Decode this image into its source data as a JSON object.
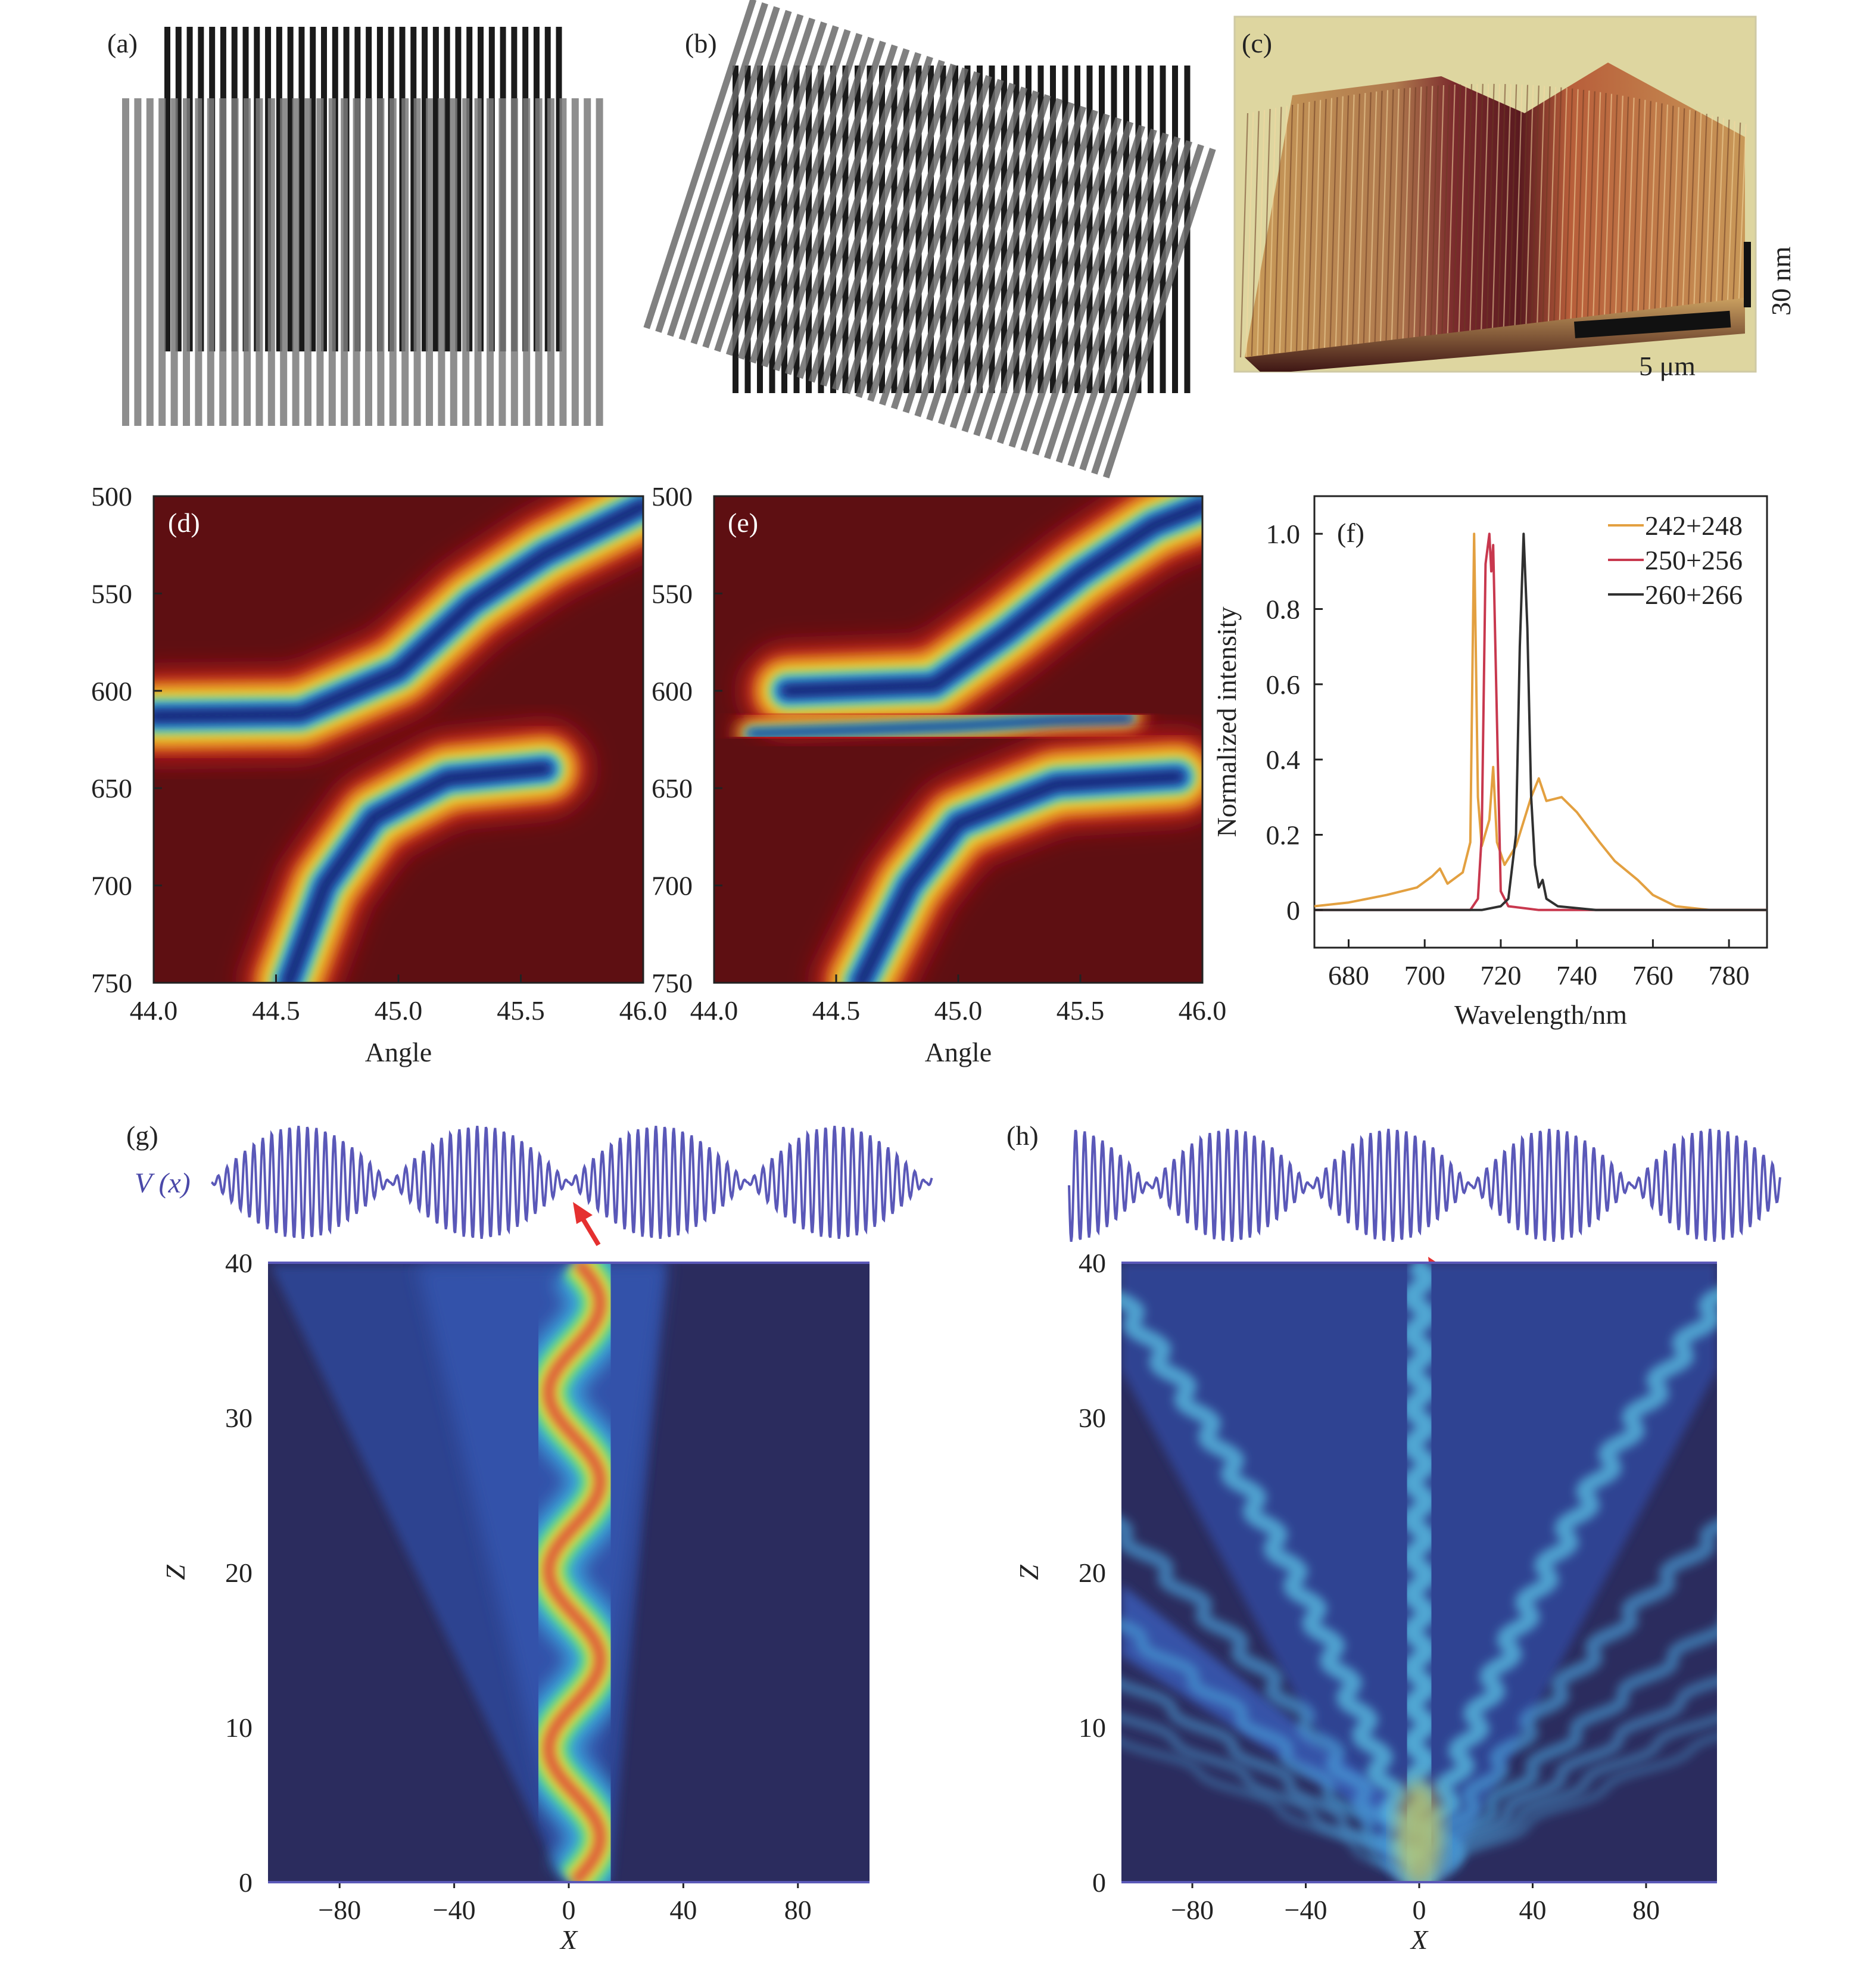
{
  "panels": {
    "a": {
      "label": "(a)"
    },
    "b": {
      "label": "(b)"
    },
    "c": {
      "label": "(c)",
      "scale_z": "30 nm",
      "scale_xy": "5 μm"
    },
    "d": {
      "label": "(d)"
    },
    "e": {
      "label": "(e)"
    },
    "f": {
      "label": "(f)"
    },
    "g": {
      "label": "(g)",
      "potential_label": "V (x)"
    },
    "h": {
      "label": "(h)"
    }
  },
  "colors": {
    "map_background": "#5e0f12",
    "field_background": "#2b2c5e",
    "potential_wave": "#5a58b8",
    "arrow": "#e53030"
  },
  "chart_data": [
    {
      "id": "d",
      "type": "heatmap",
      "xlabel": "Angle",
      "ylabel": "",
      "x_ticks": [
        "44.0",
        "44.5",
        "45.0",
        "45.5",
        "46.0"
      ],
      "y_ticks": [
        "500",
        "550",
        "600",
        "650",
        "700",
        "750"
      ],
      "xlim": [
        44.0,
        46.0
      ],
      "ylim": [
        500,
        750
      ],
      "branches": [
        {
          "name": "upper",
          "points": [
            [
              44.0,
              613
            ],
            [
              44.6,
              612
            ],
            [
              45.0,
              590
            ],
            [
              45.3,
              555
            ],
            [
              45.6,
              530
            ],
            [
              46.0,
              505
            ]
          ]
        },
        {
          "name": "lower",
          "points": [
            [
              44.55,
              750
            ],
            [
              44.7,
              700
            ],
            [
              44.9,
              665
            ],
            [
              45.2,
              645
            ],
            [
              45.6,
              640
            ]
          ]
        }
      ]
    },
    {
      "id": "e",
      "type": "heatmap",
      "xlabel": "Angle",
      "ylabel": "",
      "x_ticks": [
        "44.0",
        "44.5",
        "45.0",
        "45.5",
        "46.0"
      ],
      "y_ticks": [
        "500",
        "550",
        "600",
        "650",
        "700",
        "750"
      ],
      "xlim": [
        44.0,
        46.0
      ],
      "ylim": [
        500,
        750
      ],
      "branches": [
        {
          "name": "upper",
          "points": [
            [
              44.3,
              600
            ],
            [
              44.9,
              597
            ],
            [
              45.2,
              570
            ],
            [
              45.5,
              540
            ],
            [
              45.8,
              515
            ],
            [
              46.0,
              505
            ]
          ]
        },
        {
          "name": "middle",
          "points": [
            [
              44.15,
              622
            ],
            [
              44.6,
              620
            ],
            [
              45.0,
              618
            ],
            [
              45.4,
              615
            ],
            [
              45.7,
              614
            ]
          ]
        },
        {
          "name": "lower",
          "points": [
            [
              44.6,
              750
            ],
            [
              44.8,
              700
            ],
            [
              45.0,
              668
            ],
            [
              45.4,
              648
            ],
            [
              45.9,
              644
            ]
          ]
        }
      ]
    },
    {
      "id": "f",
      "type": "line",
      "xlabel": "Wavelength/nm",
      "ylabel": "Normalized intensity",
      "x_ticks": [
        "680",
        "700",
        "720",
        "740",
        "760",
        "780"
      ],
      "y_ticks": [
        "0",
        "0.2",
        "0.4",
        "0.6",
        "0.8",
        "1.0"
      ],
      "xlim": [
        671,
        790
      ],
      "ylim": [
        -0.1,
        1.1
      ],
      "legend_position": "top-right",
      "series": [
        {
          "name": "242+248",
          "color": "#e3a040",
          "points": [
            [
              671,
              0.01
            ],
            [
              680,
              0.02
            ],
            [
              690,
              0.04
            ],
            [
              698,
              0.06
            ],
            [
              702,
              0.09
            ],
            [
              704,
              0.11
            ],
            [
              706,
              0.07
            ],
            [
              710,
              0.1
            ],
            [
              712,
              0.18
            ],
            [
              713,
              1.0
            ],
            [
              714,
              0.3
            ],
            [
              715,
              0.17
            ],
            [
              717,
              0.24
            ],
            [
              718,
              0.38
            ],
            [
              719,
              0.18
            ],
            [
              721,
              0.12
            ],
            [
              724,
              0.17
            ],
            [
              728,
              0.3
            ],
            [
              730,
              0.35
            ],
            [
              732,
              0.29
            ],
            [
              736,
              0.3
            ],
            [
              740,
              0.26
            ],
            [
              746,
              0.18
            ],
            [
              750,
              0.13
            ],
            [
              756,
              0.08
            ],
            [
              760,
              0.04
            ],
            [
              766,
              0.01
            ],
            [
              775,
              0.0
            ],
            [
              790,
              0.0
            ]
          ]
        },
        {
          "name": "250+256",
          "color": "#c8384e",
          "points": [
            [
              671,
              0.0
            ],
            [
              700,
              0.0
            ],
            [
              712,
              0.0
            ],
            [
              714,
              0.03
            ],
            [
              715,
              0.2
            ],
            [
              716,
              0.92
            ],
            [
              717,
              1.0
            ],
            [
              717.5,
              0.9
            ],
            [
              718,
              0.97
            ],
            [
              719,
              0.5
            ],
            [
              720,
              0.05
            ],
            [
              722,
              0.01
            ],
            [
              730,
              0.0
            ],
            [
              790,
              0.0
            ]
          ]
        },
        {
          "name": "260+266",
          "color": "#303030",
          "points": [
            [
              671,
              0.0
            ],
            [
              700,
              0.0
            ],
            [
              715,
              0.0
            ],
            [
              720,
              0.01
            ],
            [
              722,
              0.03
            ],
            [
              724,
              0.2
            ],
            [
              725,
              0.7
            ],
            [
              726,
              1.0
            ],
            [
              727,
              0.75
            ],
            [
              728,
              0.3
            ],
            [
              729,
              0.12
            ],
            [
              730,
              0.06
            ],
            [
              731,
              0.08
            ],
            [
              732,
              0.03
            ],
            [
              735,
              0.01
            ],
            [
              745,
              0.0
            ],
            [
              790,
              0.0
            ]
          ]
        }
      ]
    },
    {
      "id": "g",
      "type": "heatmap",
      "xlabel": "X",
      "ylabel": "Z",
      "x_ticks": [
        "−80",
        "−40",
        "0",
        "40",
        "80"
      ],
      "y_ticks": [
        "0",
        "10",
        "20",
        "30",
        "40"
      ],
      "xlim": [
        -105,
        105
      ],
      "ylim": [
        0,
        40
      ],
      "beam": "single snaking beam centred near X≈0"
    },
    {
      "id": "h",
      "type": "heatmap",
      "xlabel": "X",
      "ylabel": "Z",
      "x_ticks": [
        "−80",
        "−40",
        "0",
        "40",
        "80"
      ],
      "y_ticks": [
        "0",
        "10",
        "20",
        "30",
        "40"
      ],
      "xlim": [
        -105,
        105
      ],
      "ylim": [
        0,
        40
      ],
      "beam": "diffracting fan of beams from X≈0"
    }
  ]
}
